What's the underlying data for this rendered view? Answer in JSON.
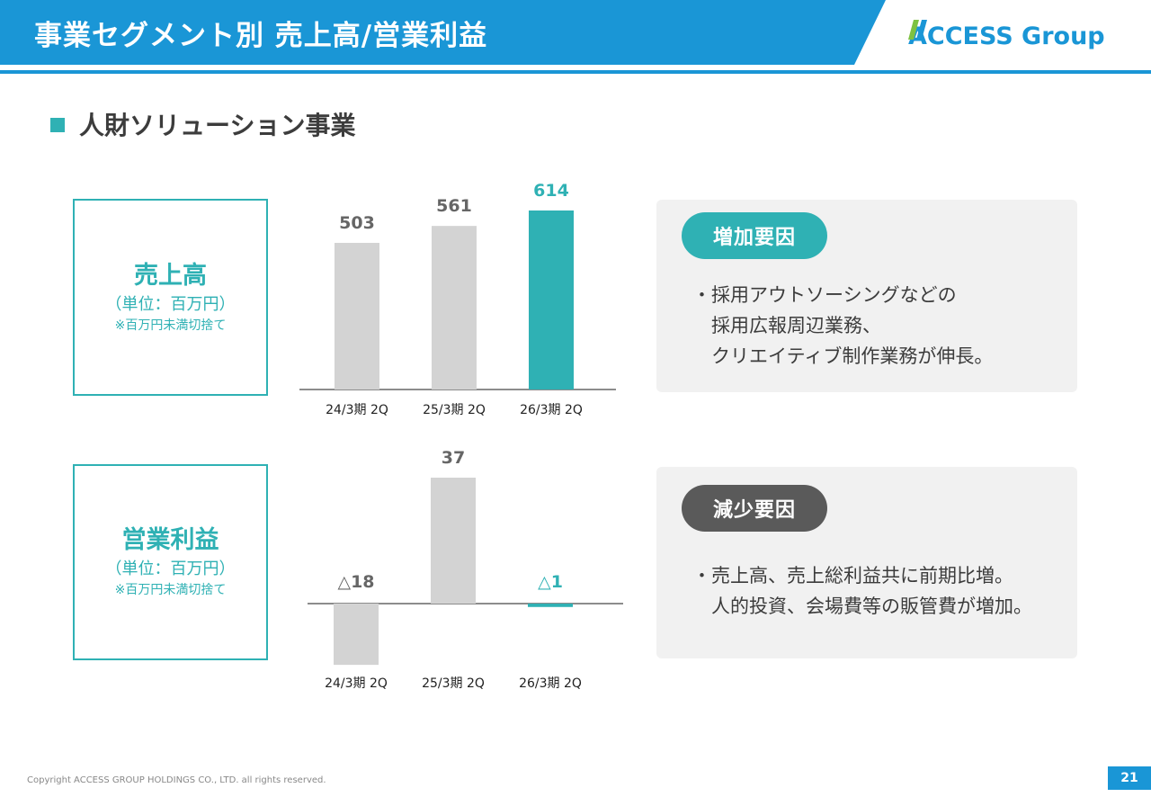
{
  "header": {
    "title": "事業セグメント別 売上高/営業利益",
    "logo_text": "ACCESS Group",
    "bar_color": "#1a96d6"
  },
  "section": {
    "title": "人財ソリューション事業",
    "accent_color": "#2fb1b4"
  },
  "sales_box": {
    "title": "売上高",
    "unit": "（単位：百万円）",
    "note": "※百万円未満切捨て"
  },
  "profit_box": {
    "title": "営業利益",
    "unit": "（単位：百万円）",
    "note": "※百万円未満切捨て"
  },
  "chart_data": [
    {
      "type": "bar",
      "title": "",
      "categories": [
        "24/3期 2Q",
        "25/3期 2Q",
        "26/3期 2Q"
      ],
      "values": [
        503,
        561,
        614
      ],
      "value_labels": [
        "503",
        "561",
        "614"
      ],
      "highlight_index": 2,
      "colors": {
        "default": "#d3d3d3",
        "highlight": "#2fb1b4"
      },
      "ylim": [
        0,
        614
      ]
    },
    {
      "type": "bar",
      "title": "",
      "categories": [
        "24/3期 2Q",
        "25/3期 2Q",
        "26/3期 2Q"
      ],
      "values": [
        -18,
        37,
        -1
      ],
      "value_labels": [
        "△18",
        "37",
        "△1"
      ],
      "highlight_index": 2,
      "colors": {
        "default": "#d3d3d3",
        "highlight": "#2fb1b4"
      },
      "ylim": [
        -18,
        37
      ]
    }
  ],
  "increase_factors": {
    "label": "増加要因",
    "color": "#2fb1b4",
    "lines": [
      "・採用アウトソーシングなどの",
      "　採用広報周辺業務、",
      "　クリエイティブ制作業務が伸長。"
    ]
  },
  "decrease_factors": {
    "label": "減少要因",
    "color": "#5a5a5a",
    "lines": [
      "・売上高、売上総利益共に前期比増。",
      "　人的投資、会場費等の販管費が増加。"
    ]
  },
  "footer": {
    "copyright": "Copyright ACCESS GROUP HOLDINGS CO., LTD. all rights reserved.",
    "page_number": "21"
  }
}
